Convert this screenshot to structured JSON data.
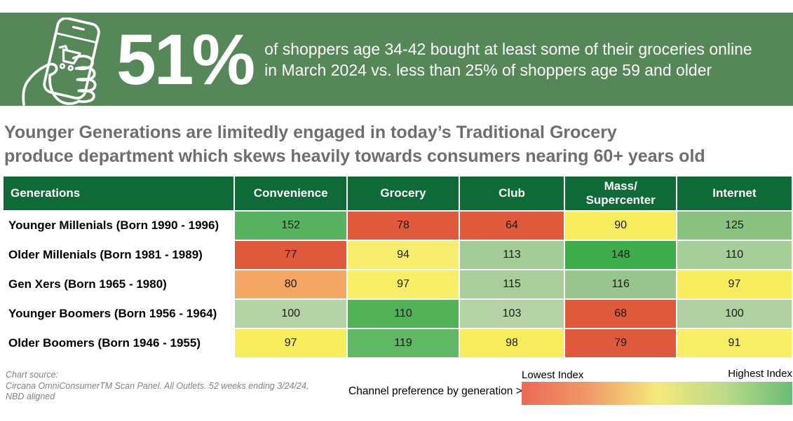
{
  "banner": {
    "bg_color": "#558759",
    "stat": "51%",
    "description": "of shoppers age 34-42 bought at least some of their groceries online\nin March 2024 vs. less than 25% of shoppers age 59 and older",
    "icon": "hand-holding-phone-shopping-cart-icon"
  },
  "headline": "Younger Generations are limitedly engaged in today’s Traditional Grocery\nproduce department which skews heavily towards consumers nearing 60+ years old",
  "table": {
    "header_bg": "#0e6b38",
    "columns": [
      "Generations",
      "Convenience",
      "Grocery",
      "Club",
      "Mass/\nSupercenter",
      "Internet"
    ],
    "rows": [
      {
        "label": "Younger Millenials (Born 1990 - 1996)",
        "cells": [
          {
            "value": "152",
            "color": "#58B25F"
          },
          {
            "value": "78",
            "color": "#DF5A3C"
          },
          {
            "value": "64",
            "color": "#DF5A3C"
          },
          {
            "value": "90",
            "color": "#F8ED5E"
          },
          {
            "value": "125",
            "color": "#8BC282"
          }
        ]
      },
      {
        "label": "Older Millenials (Born 1981 - 1989)",
        "cells": [
          {
            "value": "77",
            "color": "#DF5A3C"
          },
          {
            "value": "94",
            "color": "#F7ED6E"
          },
          {
            "value": "113",
            "color": "#A4CB98"
          },
          {
            "value": "148",
            "color": "#3EAC4A"
          },
          {
            "value": "110",
            "color": "#A7CD9B"
          }
        ]
      },
      {
        "label": "Gen Xers (Born 1965 - 1980)",
        "cells": [
          {
            "value": "80",
            "color": "#F2A765"
          },
          {
            "value": "97",
            "color": "#F8ED66"
          },
          {
            "value": "115",
            "color": "#A9CE9B"
          },
          {
            "value": "116",
            "color": "#98C58D"
          },
          {
            "value": "97",
            "color": "#F8ED5E"
          }
        ]
      },
      {
        "label": "Younger Boomers (Born 1956 - 1964)",
        "cells": [
          {
            "value": "100",
            "color": "#B6D3A8"
          },
          {
            "value": "110",
            "color": "#53B157"
          },
          {
            "value": "103",
            "color": "#B6D3A8"
          },
          {
            "value": "68",
            "color": "#DF5A3C"
          },
          {
            "value": "100",
            "color": "#B0D0A2"
          }
        ]
      },
      {
        "label": "Older Boomers (Born 1946 - 1955)",
        "cells": [
          {
            "value": "97",
            "color": "#F8ED5E"
          },
          {
            "value": "119",
            "color": "#60B764"
          },
          {
            "value": "98",
            "color": "#F8ED5E"
          },
          {
            "value": "79",
            "color": "#DF5A3C"
          },
          {
            "value": "91",
            "color": "#F8ED66"
          }
        ]
      }
    ]
  },
  "footer": {
    "source": "Chart source:\nCircana OmniConsumerTM Scan Panel. All Outlets. 52 weeks ending 3/24/24,\nNBD aligned",
    "legend_caption": "Channel preference by generation >",
    "legend_low": "Lowest Index",
    "legend_high": "Highest Index",
    "gradient": [
      "#EC6A56",
      "#F09A68",
      "#F5E97C",
      "#BBDA8A",
      "#6ABD75"
    ]
  },
  "chart_data": {
    "type": "heatmap",
    "title": "Younger Generations are limitedly engaged in today’s Traditional Grocery produce department which skews heavily towards consumers nearing 60+ years old",
    "callout_stat": "51%",
    "callout_text": "of shoppers age 34-42 bought at least some of their groceries online in March 2024 vs. less than 25% of shoppers age 59 and older",
    "row_header": "Generations",
    "columns": [
      "Convenience",
      "Grocery",
      "Club",
      "Mass/Supercenter",
      "Internet"
    ],
    "rows": [
      "Younger Millenials (Born 1990 - 1996)",
      "Older Millenials (Born 1981 - 1989)",
      "Gen Xers (Born 1965 - 1980)",
      "Younger Boomers (Born 1956 - 1964)",
      "Older Boomers (Born 1946 - 1955)"
    ],
    "values": [
      [
        152,
        78,
        64,
        90,
        125
      ],
      [
        77,
        94,
        113,
        148,
        110
      ],
      [
        80,
        97,
        115,
        116,
        97
      ],
      [
        100,
        110,
        103,
        68,
        100
      ],
      [
        97,
        119,
        98,
        79,
        91
      ]
    ],
    "legend": {
      "low_label": "Lowest Index",
      "high_label": "Highest Index",
      "scale": "red-to-green per row"
    },
    "source": "Circana OmniConsumerTM Scan Panel. All Outlets. 52 weeks ending 3/24/24, NBD aligned"
  }
}
